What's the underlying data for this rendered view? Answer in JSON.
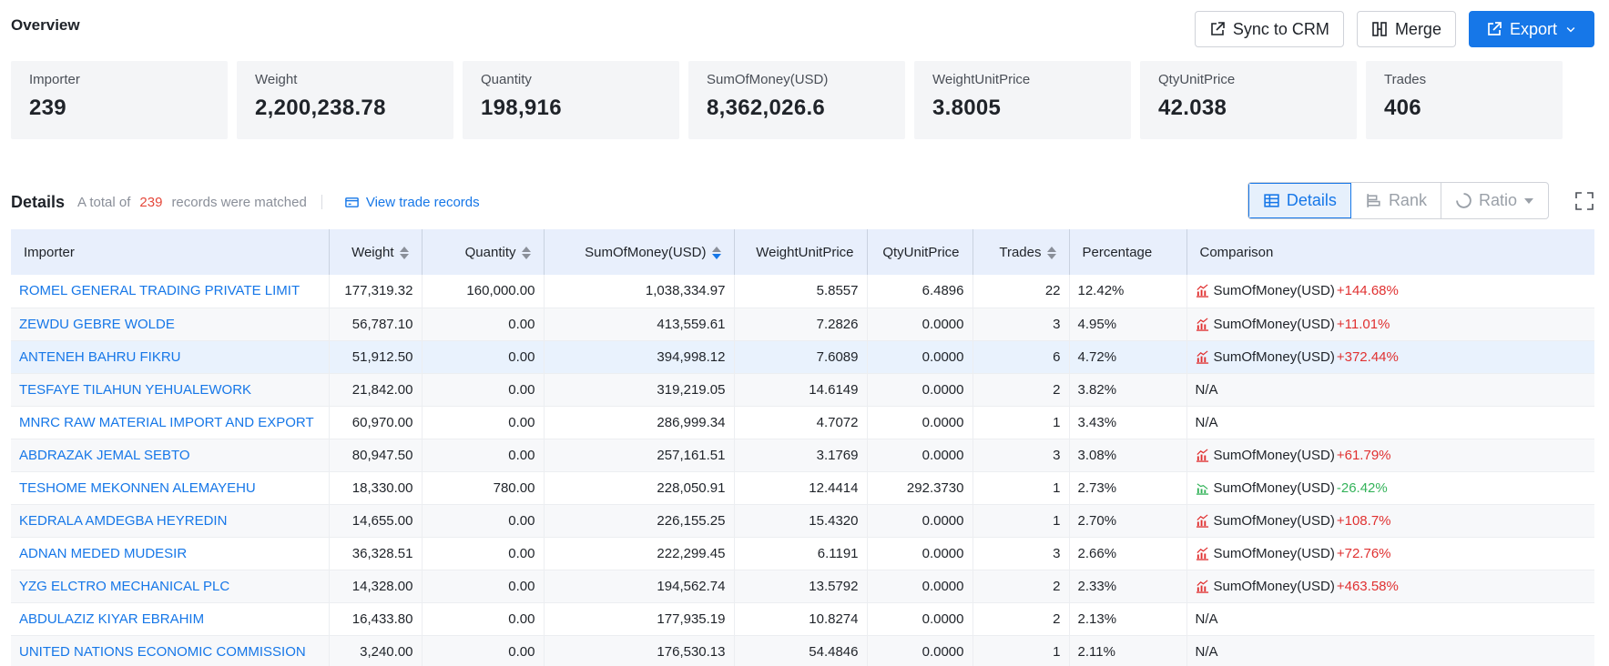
{
  "overview": {
    "title": "Overview",
    "buttons": {
      "sync": "Sync to CRM",
      "merge": "Merge",
      "export": "Export"
    },
    "cards": [
      {
        "label": "Importer",
        "value": "239"
      },
      {
        "label": "Weight",
        "value": "2,200,238.78"
      },
      {
        "label": "Quantity",
        "value": "198,916"
      },
      {
        "label": "SumOfMoney(USD)",
        "value": "8,362,026.6"
      },
      {
        "label": "WeightUnitPrice",
        "value": "3.8005"
      },
      {
        "label": "QtyUnitPrice",
        "value": "42.038"
      },
      {
        "label": "Trades",
        "value": "406"
      }
    ]
  },
  "details": {
    "title": "Details",
    "sub_prefix": "A total of",
    "count": "239",
    "sub_suffix": "records were matched",
    "view_link": "View trade records",
    "views": {
      "details": "Details",
      "rank": "Rank",
      "ratio": "Ratio"
    }
  },
  "colors": {
    "accent": "#1677e8",
    "positive": "#e03131",
    "negative": "#34b35a",
    "header_bg": "#e8effc"
  },
  "table": {
    "headers": {
      "importer": "Importer",
      "weight": "Weight",
      "quantity": "Quantity",
      "sum": "SumOfMoney(USD)",
      "wup": "WeightUnitPrice",
      "qup": "QtyUnitPrice",
      "trades": "Trades",
      "pct": "Percentage",
      "cmp": "Comparison"
    },
    "rows": [
      {
        "importer": "ROMEL GENERAL TRADING PRIVATE LIMIT",
        "weight": "177,319.32",
        "quantity": "160,000.00",
        "sum": "1,038,334.97",
        "wup": "5.8557",
        "qup": "6.4896",
        "trades": "22",
        "pct": "12.42%",
        "cmp_label": "SumOfMoney(USD)",
        "cmp_val": "+144.68%",
        "trend": "up"
      },
      {
        "importer": "ZEWDU GEBRE WOLDE",
        "weight": "56,787.10",
        "quantity": "0.00",
        "sum": "413,559.61",
        "wup": "7.2826",
        "qup": "0.0000",
        "trades": "3",
        "pct": "4.95%",
        "cmp_label": "SumOfMoney(USD)",
        "cmp_val": "+11.01%",
        "trend": "up"
      },
      {
        "importer": "ANTENEH BAHRU FIKRU",
        "weight": "51,912.50",
        "quantity": "0.00",
        "sum": "394,998.12",
        "wup": "7.6089",
        "qup": "0.0000",
        "trades": "6",
        "pct": "4.72%",
        "cmp_label": "SumOfMoney(USD)",
        "cmp_val": "+372.44%",
        "trend": "up"
      },
      {
        "importer": "TESFAYE TILAHUN YEHUALEWORK",
        "weight": "21,842.00",
        "quantity": "0.00",
        "sum": "319,219.05",
        "wup": "14.6149",
        "qup": "0.0000",
        "trades": "2",
        "pct": "3.82%",
        "cmp_label": "N/A",
        "cmp_val": "",
        "trend": "none"
      },
      {
        "importer": "MNRC RAW MATERIAL IMPORT AND EXPORT",
        "weight": "60,970.00",
        "quantity": "0.00",
        "sum": "286,999.34",
        "wup": "4.7072",
        "qup": "0.0000",
        "trades": "1",
        "pct": "3.43%",
        "cmp_label": "N/A",
        "cmp_val": "",
        "trend": "none"
      },
      {
        "importer": "ABDRAZAK JEMAL SEBTO",
        "weight": "80,947.50",
        "quantity": "0.00",
        "sum": "257,161.51",
        "wup": "3.1769",
        "qup": "0.0000",
        "trades": "3",
        "pct": "3.08%",
        "cmp_label": "SumOfMoney(USD)",
        "cmp_val": "+61.79%",
        "trend": "up"
      },
      {
        "importer": "TESHOME MEKONNEN ALEMAYEHU",
        "weight": "18,330.00",
        "quantity": "780.00",
        "sum": "228,050.91",
        "wup": "12.4414",
        "qup": "292.3730",
        "trades": "1",
        "pct": "2.73%",
        "cmp_label": "SumOfMoney(USD)",
        "cmp_val": "-26.42%",
        "trend": "down"
      },
      {
        "importer": "KEDRALA AMDEGBA HEYREDIN",
        "weight": "14,655.00",
        "quantity": "0.00",
        "sum": "226,155.25",
        "wup": "15.4320",
        "qup": "0.0000",
        "trades": "1",
        "pct": "2.70%",
        "cmp_label": "SumOfMoney(USD)",
        "cmp_val": "+108.7%",
        "trend": "up"
      },
      {
        "importer": "ADNAN MEDED MUDESIR",
        "weight": "36,328.51",
        "quantity": "0.00",
        "sum": "222,299.45",
        "wup": "6.1191",
        "qup": "0.0000",
        "trades": "3",
        "pct": "2.66%",
        "cmp_label": "SumOfMoney(USD)",
        "cmp_val": "+72.76%",
        "trend": "up"
      },
      {
        "importer": "YZG ELCTRO MECHANICAL PLC",
        "weight": "14,328.00",
        "quantity": "0.00",
        "sum": "194,562.74",
        "wup": "13.5792",
        "qup": "0.0000",
        "trades": "2",
        "pct": "2.33%",
        "cmp_label": "SumOfMoney(USD)",
        "cmp_val": "+463.58%",
        "trend": "up"
      },
      {
        "importer": "ABDULAZIZ KIYAR EBRAHIM",
        "weight": "16,433.80",
        "quantity": "0.00",
        "sum": "177,935.19",
        "wup": "10.8274",
        "qup": "0.0000",
        "trades": "2",
        "pct": "2.13%",
        "cmp_label": "N/A",
        "cmp_val": "",
        "trend": "none"
      },
      {
        "importer": "UNITED NATIONS ECONOMIC COMMISSION",
        "weight": "3,240.00",
        "quantity": "0.00",
        "sum": "176,530.13",
        "wup": "54.4846",
        "qup": "0.0000",
        "trades": "1",
        "pct": "2.11%",
        "cmp_label": "N/A",
        "cmp_val": "",
        "trend": "none"
      }
    ]
  }
}
